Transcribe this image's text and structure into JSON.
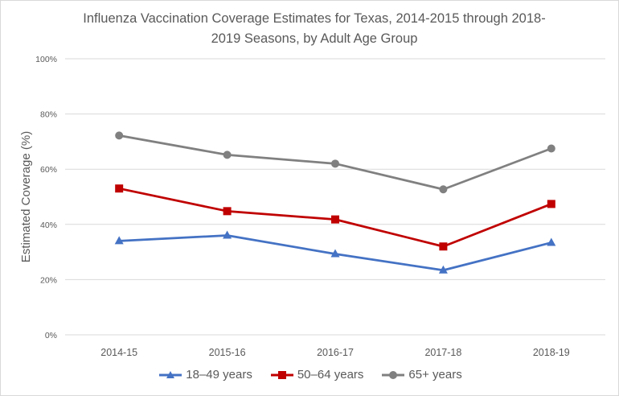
{
  "chart_data": {
    "type": "line",
    "title": "Influenza Vaccination Coverage Estimates for Texas, 2014-2015 through 2018-2019 Seasons, by Adult Age Group",
    "title_lines": [
      "Influenza Vaccination Coverage Estimates for Texas, 2014-2015 through 2018-",
      "2019 Seasons, by Adult Age Group"
    ],
    "categories": [
      "2014-15",
      "2015-16",
      "2016-17",
      "2017-18",
      "2018-19"
    ],
    "xlabel": "",
    "ylabel": "Estimated Coverage (%)",
    "ylim": [
      0,
      100
    ],
    "yticks": [
      0,
      20,
      40,
      60,
      80,
      100
    ],
    "ytick_labels": [
      "0%",
      "20%",
      "40%",
      "60%",
      "80%",
      "100%"
    ],
    "grid": true,
    "legend_position": "bottom",
    "series": [
      {
        "name": "18–49 years",
        "marker": "triangle",
        "color": "#4472c4",
        "values": [
          34.0,
          36.0,
          29.3,
          23.4,
          33.4
        ]
      },
      {
        "name": "50–64 years",
        "marker": "square",
        "color": "#c00000",
        "values": [
          53.0,
          44.8,
          41.8,
          32.0,
          47.4
        ]
      },
      {
        "name": "65+ years",
        "marker": "circle",
        "color": "#808080",
        "values": [
          72.2,
          65.2,
          62.0,
          52.7,
          67.5
        ]
      }
    ]
  }
}
